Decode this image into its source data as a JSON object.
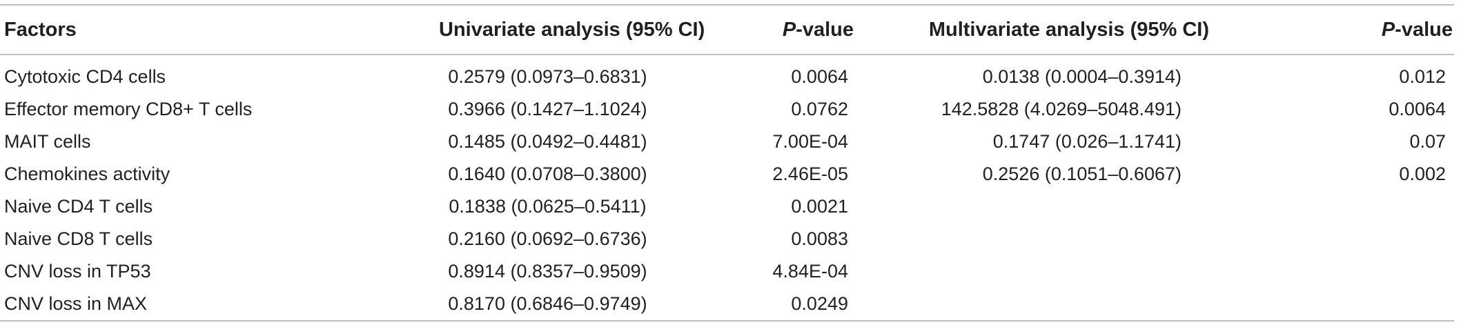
{
  "table": {
    "headers": {
      "factors": "Factors",
      "univariate": "Univariate analysis (95% CI)",
      "p_italic": "P",
      "p_suffix": "-value",
      "multivariate": "Multivariate analysis (95% CI)"
    },
    "rows": [
      {
        "factor": "Cytotoxic CD4 cells",
        "univariate": "0.2579 (0.0973–0.6831)",
        "p_uni": "0.0064",
        "multivariate": "0.0138 (0.0004–0.3914)",
        "p_multi": "0.012"
      },
      {
        "factor": "Effector memory CD8+ T cells",
        "univariate": "0.3966 (0.1427–1.1024)",
        "p_uni": "0.0762",
        "multivariate": "142.5828 (4.0269–5048.491)",
        "p_multi": "0.0064"
      },
      {
        "factor": "MAIT cells",
        "univariate": "0.1485 (0.0492–0.4481)",
        "p_uni": "7.00E-04",
        "multivariate": "0.1747 (0.026–1.1741)",
        "p_multi": "0.07"
      },
      {
        "factor": "Chemokines activity",
        "univariate": "0.1640 (0.0708–0.3800)",
        "p_uni": "2.46E-05",
        "multivariate": "0.2526 (0.1051–0.6067)",
        "p_multi": "0.002"
      },
      {
        "factor": "Naive CD4 T cells",
        "univariate": "0.1838 (0.0625–0.5411)",
        "p_uni": "0.0021",
        "multivariate": "",
        "p_multi": ""
      },
      {
        "factor": "Naive CD8 T cells",
        "univariate": "0.2160 (0.0692–0.6736)",
        "p_uni": "0.0083",
        "multivariate": "",
        "p_multi": ""
      },
      {
        "factor": "CNV loss in TP53",
        "univariate": "0.8914 (0.8357–0.9509)",
        "p_uni": "4.84E-04",
        "multivariate": "",
        "p_multi": ""
      },
      {
        "factor": "CNV loss in MAX",
        "univariate": "0.8170 (0.6846–0.9749)",
        "p_uni": "0.0249",
        "multivariate": "",
        "p_multi": ""
      }
    ]
  }
}
